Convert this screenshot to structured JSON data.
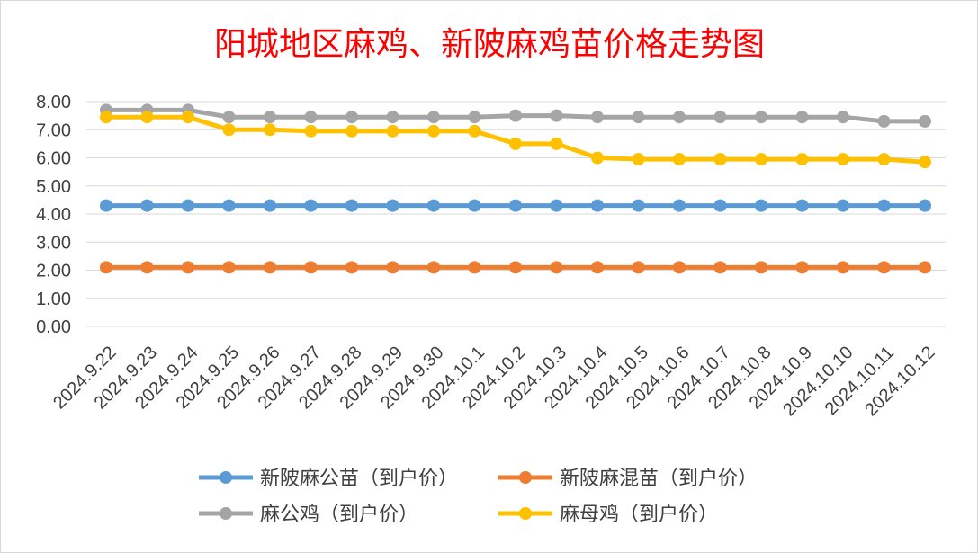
{
  "chart_data": {
    "type": "line",
    "title": "阳城地区麻鸡、新陂麻鸡苗价格走势图",
    "title_color": "#ff0000",
    "xlabel": "",
    "ylabel": "",
    "ylim": [
      0,
      8
    ],
    "y_ticks": [
      "0.00",
      "1.00",
      "2.00",
      "3.00",
      "4.00",
      "5.00",
      "6.00",
      "7.00",
      "8.00"
    ],
    "grid": true,
    "legend_position": "bottom",
    "categories": [
      "2024.9.22",
      "2024.9.23",
      "2024.9.24",
      "2024.9.25",
      "2024.9.26",
      "2024.9.27",
      "2024.9.28",
      "2024.9.29",
      "2024.9.30",
      "2024.10.1",
      "2024.10.2",
      "2024.10.3",
      "2024.10.4",
      "2024.10.5",
      "2024.10.6",
      "2024.10.7",
      "2024.10.8",
      "2024.10.9",
      "2024.10.10",
      "2024.10.11",
      "2024.10.12"
    ],
    "series": [
      {
        "name": "新陂麻公苗（到户价）",
        "color": "#5b9bd5",
        "values": [
          4.3,
          4.3,
          4.3,
          4.3,
          4.3,
          4.3,
          4.3,
          4.3,
          4.3,
          4.3,
          4.3,
          4.3,
          4.3,
          4.3,
          4.3,
          4.3,
          4.3,
          4.3,
          4.3,
          4.3,
          4.3
        ]
      },
      {
        "name": "新陂麻混苗（到户价）",
        "color": "#ed7d31",
        "values": [
          2.1,
          2.1,
          2.1,
          2.1,
          2.1,
          2.1,
          2.1,
          2.1,
          2.1,
          2.1,
          2.1,
          2.1,
          2.1,
          2.1,
          2.1,
          2.1,
          2.1,
          2.1,
          2.1,
          2.1,
          2.1
        ]
      },
      {
        "name": "麻公鸡（到户价）",
        "color": "#a5a5a5",
        "values": [
          7.7,
          7.7,
          7.7,
          7.45,
          7.45,
          7.45,
          7.45,
          7.45,
          7.45,
          7.45,
          7.5,
          7.5,
          7.45,
          7.45,
          7.45,
          7.45,
          7.45,
          7.45,
          7.45,
          7.3,
          7.3
        ]
      },
      {
        "name": "麻母鸡（到户价）",
        "color": "#ffc000",
        "values": [
          7.45,
          7.45,
          7.45,
          7.0,
          7.0,
          6.95,
          6.95,
          6.95,
          6.95,
          6.95,
          6.5,
          6.5,
          6.0,
          5.95,
          5.95,
          5.95,
          5.95,
          5.95,
          5.95,
          5.95,
          5.85
        ]
      }
    ]
  }
}
